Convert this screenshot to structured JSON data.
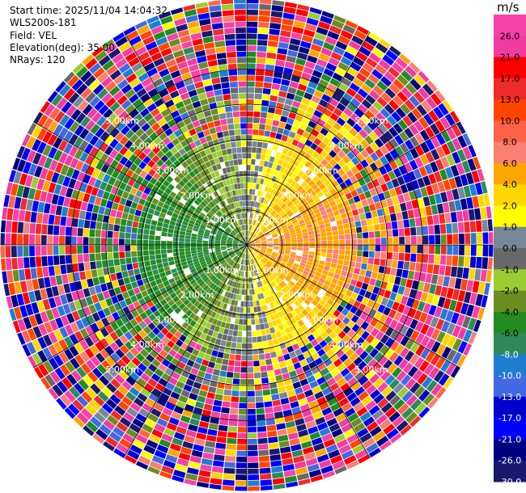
{
  "header": {
    "lines": [
      "Start time: 2025/11/04 14:04:32",
      "WLS200s-181",
      "Field: VEL",
      "Elevation(deg): 35.00",
      "NRays: 120"
    ]
  },
  "chart_data": {
    "type": "ppi",
    "field": "VEL",
    "instrument": "WLS200s-181",
    "start_time": "2025/11/04 14:04:32",
    "elevation_deg": 35.0,
    "n_rays": 120,
    "range_rings_km": [
      1.0,
      2.0,
      3.0,
      4.0,
      5.0
    ],
    "ring_labels": [
      "1.00km",
      "2.00km",
      "3.00km",
      "4.00km",
      "5.00km"
    ],
    "max_range_km": 7.0,
    "grid_spokes_deg": [
      0,
      30,
      60,
      90,
      120,
      150,
      180,
      210,
      240,
      270,
      300,
      330
    ],
    "colorbar": {
      "unit": "m/s",
      "ticks": [
        "26.0",
        "21.0",
        "17.0",
        "13.0",
        "10.0",
        "8.0",
        "6.0",
        "4.0",
        "2.0",
        "1.0",
        "0.0",
        "-1.0",
        "-2.0",
        "-4.0",
        "-6.0",
        "-8.0",
        "-10.0",
        "-13.0",
        "-17.0",
        "-21.0",
        "-26.0",
        "-30.0"
      ],
      "boundaries": [
        30,
        26,
        21,
        17,
        13,
        10,
        8,
        6,
        4,
        2,
        1,
        0,
        -1,
        -2,
        -4,
        -6,
        -8,
        -10,
        -13,
        -17,
        -21,
        -26,
        -30
      ],
      "colors": [
        "#f542a6",
        "#f03ca0",
        "#ff0000",
        "#ee2a2a",
        "#ff4500",
        "#ff6347",
        "#fa8072",
        "#ffa500",
        "#ffd700",
        "#ffff00",
        "#778899",
        "#696969",
        "#9acd32",
        "#6b8e23",
        "#228b22",
        "#2e8b57",
        "#1e7fd0",
        "#4169e1",
        "#0000cd",
        "#0000ff",
        "#000080",
        "#191970"
      ]
    },
    "near_field_pattern": {
      "east_sector": "positive 2 to 6 m/s (yellow to orange)",
      "west_sector": "negative -2 to -8 m/s (greens)",
      "north_south": "mixed near 0 m/s (greys)",
      "outer_range": "noisy full-range values"
    }
  }
}
